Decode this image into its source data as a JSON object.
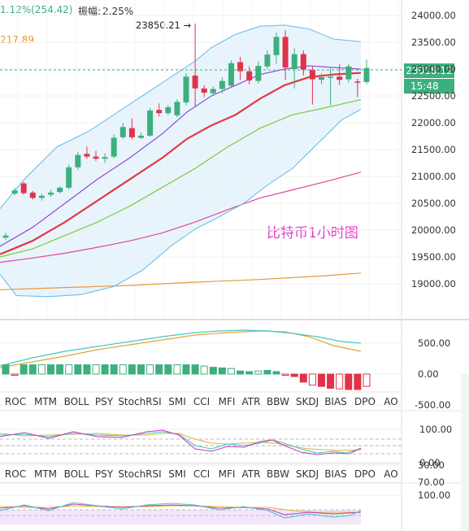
{
  "header": {
    "change_text": "1.12%(254.42)",
    "amplitude_label": "振幅:",
    "amplitude_value": "2.25%",
    "ma_value": "217.89",
    "high_marker": "23850.21 →"
  },
  "price": {
    "current": "23018.12",
    "countdown": "15:48"
  },
  "chart_label": "比特币1小时图",
  "colors": {
    "up": "#3daf7e",
    "down": "#e0334b",
    "ma_red": "#e23a44",
    "ma_purple": "#8b4bd8",
    "ma_green": "#7bcc3a",
    "ma_pink": "#e0479a",
    "ma_orange": "#e09a3a",
    "band": "#6dbfe8",
    "overlay_text": "#e33cc5"
  },
  "main_axis": [
    "24000.00",
    "23500.00",
    "23000.00",
    "22500.00",
    "22000.00",
    "21500.00",
    "21000.00",
    "20500.00",
    "20000.00",
    "19500.00",
    "19000.00"
  ],
  "macd_axis": [
    "500.00",
    "0.00",
    "-500.00"
  ],
  "kdj_axis": [
    "100.00",
    "50.00",
    "0.00"
  ],
  "rsi_axis": [
    "100.00",
    "70.00",
    "30.00"
  ],
  "tabs_row1": [
    "ROC",
    "MTM",
    "BOLL",
    "PSY",
    "StochRSI",
    "SMI",
    "CCI",
    "MFI",
    "ATR",
    "BBW",
    "SKDJ",
    "BIAS",
    "DPO",
    "AO"
  ],
  "tabs_row2": [
    "ROC",
    "MTM",
    "BOLL",
    "PSY",
    "StochRSI",
    "SMI",
    "CCI",
    "MFI",
    "ATR",
    "BBW",
    "SKDJ",
    "BIAS",
    "DPO",
    "AO"
  ],
  "icons": {
    "high_arrow": "right-arrow-icon"
  },
  "chart_data": {
    "type": "candlestick",
    "title": "比特币1小时图",
    "ylim": [
      18700,
      24100
    ],
    "candles": [
      {
        "o": 19860,
        "c": 19900,
        "h": 19950,
        "l": 19820
      },
      {
        "o": 20680,
        "c": 20740,
        "h": 20790,
        "l": 20650
      },
      {
        "o": 20870,
        "c": 20690,
        "h": 20900,
        "l": 20660
      },
      {
        "o": 20700,
        "c": 20600,
        "h": 20730,
        "l": 20570
      },
      {
        "o": 20600,
        "c": 20640,
        "h": 20680,
        "l": 20550
      },
      {
        "o": 20660,
        "c": 20700,
        "h": 20750,
        "l": 20620
      },
      {
        "o": 20710,
        "c": 20790,
        "h": 20820,
        "l": 20680
      },
      {
        "o": 20790,
        "c": 21170,
        "h": 21220,
        "l": 20760
      },
      {
        "o": 21170,
        "c": 21400,
        "h": 21460,
        "l": 21120
      },
      {
        "o": 21420,
        "c": 21370,
        "h": 21560,
        "l": 21330
      },
      {
        "o": 21370,
        "c": 21330,
        "h": 21480,
        "l": 21290
      },
      {
        "o": 21330,
        "c": 21360,
        "h": 21430,
        "l": 21250
      },
      {
        "o": 21370,
        "c": 21720,
        "h": 21780,
        "l": 21330
      },
      {
        "o": 21730,
        "c": 21920,
        "h": 22000,
        "l": 21700
      },
      {
        "o": 21900,
        "c": 21730,
        "h": 22080,
        "l": 21690
      },
      {
        "o": 21720,
        "c": 21760,
        "h": 21820,
        "l": 21700
      },
      {
        "o": 21760,
        "c": 22230,
        "h": 22280,
        "l": 21740
      },
      {
        "o": 22240,
        "c": 22180,
        "h": 22360,
        "l": 22120
      },
      {
        "o": 22180,
        "c": 22290,
        "h": 22330,
        "l": 22140
      },
      {
        "o": 22140,
        "c": 22390,
        "h": 22440,
        "l": 22100
      },
      {
        "o": 22380,
        "c": 22860,
        "h": 22920,
        "l": 22330
      },
      {
        "o": 22880,
        "c": 22640,
        "h": 23850,
        "l": 22300
      },
      {
        "o": 22640,
        "c": 22560,
        "h": 22700,
        "l": 22480
      },
      {
        "o": 22550,
        "c": 22630,
        "h": 22680,
        "l": 22500
      },
      {
        "o": 22630,
        "c": 22780,
        "h": 22850,
        "l": 22550
      },
      {
        "o": 22690,
        "c": 23110,
        "h": 23160,
        "l": 22650
      },
      {
        "o": 23130,
        "c": 22960,
        "h": 23230,
        "l": 22800
      },
      {
        "o": 22960,
        "c": 22790,
        "h": 23050,
        "l": 22720
      },
      {
        "o": 22780,
        "c": 23060,
        "h": 23150,
        "l": 22730
      },
      {
        "o": 23050,
        "c": 23270,
        "h": 23350,
        "l": 23000
      },
      {
        "o": 23260,
        "c": 23600,
        "h": 23680,
        "l": 23100
      },
      {
        "o": 23600,
        "c": 23030,
        "h": 23720,
        "l": 22800
      },
      {
        "o": 23000,
        "c": 23280,
        "h": 23390,
        "l": 22640
      },
      {
        "o": 23280,
        "c": 22990,
        "h": 23350,
        "l": 22880
      },
      {
        "o": 22990,
        "c": 22810,
        "h": 23050,
        "l": 22340
      },
      {
        "o": 22800,
        "c": 22850,
        "h": 22920,
        "l": 22720
      },
      {
        "o": 22840,
        "c": 22860,
        "h": 23010,
        "l": 22330
      },
      {
        "o": 22860,
        "c": 22800,
        "h": 23090,
        "l": 22700
      },
      {
        "o": 22810,
        "c": 23050,
        "h": 23100,
        "l": 22750
      },
      {
        "o": 22770,
        "c": 22750,
        "h": 22820,
        "l": 22480
      },
      {
        "o": 22760,
        "c": 23020,
        "h": 23180,
        "l": 22720
      }
    ],
    "macd_hist": [
      150,
      -20,
      150,
      150,
      150,
      150,
      150,
      150,
      150,
      150,
      150,
      150,
      150,
      150,
      150,
      150,
      150,
      150,
      150,
      150,
      150,
      150,
      130,
      110,
      100,
      90,
      50,
      40,
      50,
      60,
      40,
      -20,
      -40,
      -130,
      -180,
      -200,
      -230,
      -240,
      -250,
      -250,
      -200
    ]
  }
}
